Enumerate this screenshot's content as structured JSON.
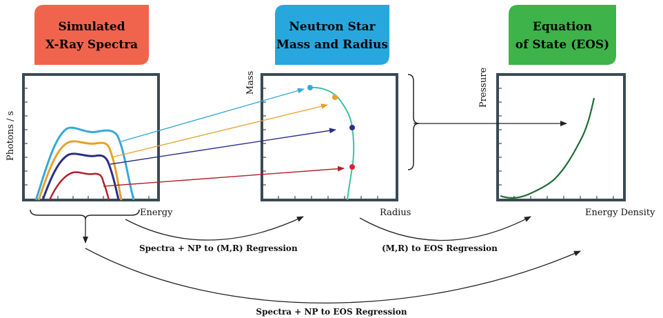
{
  "headers": {
    "spectra": {
      "line1": "Simulated",
      "line2": "X-Ray Spectra",
      "color": "#f0644e"
    },
    "mass_radius": {
      "line1": "Neutron Star",
      "line2": "Mass and Radius",
      "color": "#27a7de"
    },
    "eos": {
      "line1": "Equation",
      "line2": "of State (EOS)",
      "color": "#3db34a"
    }
  },
  "panels": {
    "spectra": {
      "ylabel": "Photons / s",
      "xlabel": "Energy"
    },
    "mass_radius": {
      "ylabel": "Mass",
      "xlabel": "Radius"
    },
    "eos": {
      "ylabel": "Pressure",
      "xlabel": "Energy Density"
    }
  },
  "arrows": {
    "spectra_to_mr": "Spectra + NP to (M,R) Regression",
    "mr_to_eos": "(M,R) to EOS Regression",
    "spectra_to_eos": "Spectra + NP to EOS Regression"
  },
  "colors": {
    "axis": "#3a4a55",
    "cyan": "#35a9d6",
    "orange": "#e8a02a",
    "navy": "#2a2f8a",
    "red": "#b3202a",
    "mr_curve": "#3cc0a0",
    "eos_curve": "#1e6b35",
    "dark_arrow": "#222222"
  }
}
